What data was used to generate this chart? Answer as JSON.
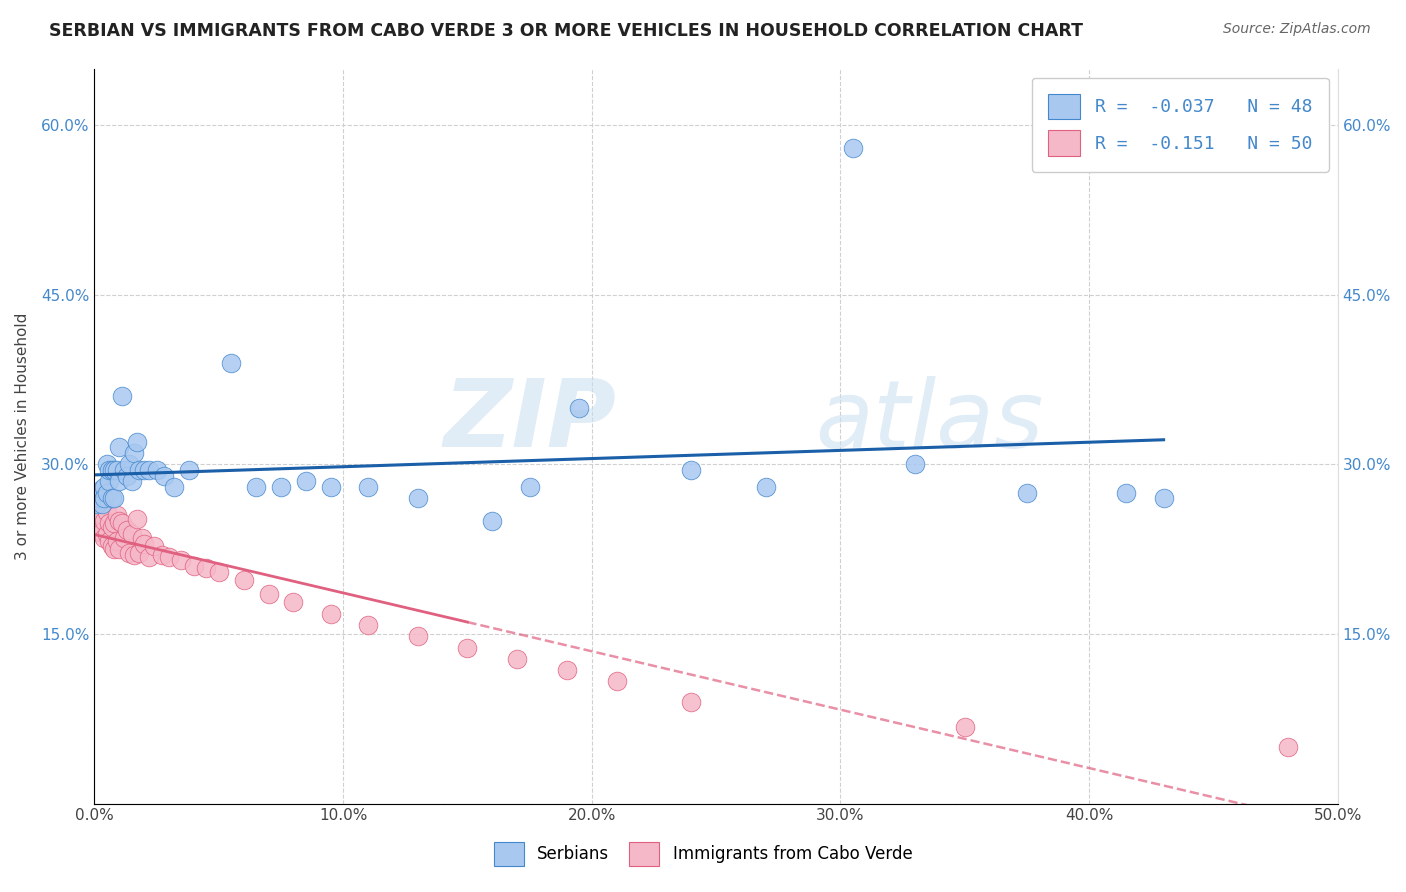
{
  "title": "SERBIAN VS IMMIGRANTS FROM CABO VERDE 3 OR MORE VEHICLES IN HOUSEHOLD CORRELATION CHART",
  "source": "Source: ZipAtlas.com",
  "ylabel": "3 or more Vehicles in Household",
  "xlim": [
    0,
    0.5
  ],
  "ylim": [
    0,
    0.65
  ],
  "xticks": [
    0.0,
    0.1,
    0.2,
    0.3,
    0.4,
    0.5
  ],
  "xtick_labels": [
    "0.0%",
    "10.0%",
    "20.0%",
    "30.0%",
    "40.0%",
    "50.0%"
  ],
  "yticks": [
    0.0,
    0.15,
    0.3,
    0.45,
    0.6
  ],
  "ytick_labels_left": [
    "",
    "15.0%",
    "30.0%",
    "45.0%",
    "60.0%"
  ],
  "ytick_labels_right": [
    "",
    "15.0%",
    "30.0%",
    "45.0%",
    "60.0%"
  ],
  "legend_labels": [
    "Serbians",
    "Immigrants from Cabo Verde"
  ],
  "serbian_R": -0.037,
  "serbian_N": 48,
  "caboverde_R": -0.151,
  "caboverde_N": 50,
  "serbian_color": "#a8c8f0",
  "caboverde_color": "#f5b8c8",
  "serbian_edge_color": "#4488cc",
  "caboverde_edge_color": "#e06080",
  "serbian_line_color": "#1a5fa8",
  "caboverde_line_color": "#e06080",
  "serbian_x": [
    0.001,
    0.002,
    0.003,
    0.003,
    0.004,
    0.004,
    0.005,
    0.005,
    0.006,
    0.006,
    0.007,
    0.007,
    0.008,
    0.008,
    0.009,
    0.01,
    0.01,
    0.011,
    0.012,
    0.013,
    0.014,
    0.015,
    0.016,
    0.017,
    0.018,
    0.02,
    0.022,
    0.025,
    0.028,
    0.032,
    0.038,
    0.055,
    0.065,
    0.075,
    0.085,
    0.095,
    0.11,
    0.13,
    0.16,
    0.175,
    0.195,
    0.24,
    0.27,
    0.305,
    0.33,
    0.375,
    0.415,
    0.43
  ],
  "serbian_y": [
    0.265,
    0.27,
    0.278,
    0.265,
    0.28,
    0.27,
    0.3,
    0.275,
    0.285,
    0.295,
    0.27,
    0.295,
    0.27,
    0.295,
    0.295,
    0.315,
    0.285,
    0.36,
    0.295,
    0.29,
    0.3,
    0.285,
    0.31,
    0.32,
    0.295,
    0.295,
    0.295,
    0.295,
    0.29,
    0.28,
    0.295,
    0.39,
    0.28,
    0.28,
    0.285,
    0.28,
    0.28,
    0.27,
    0.25,
    0.28,
    0.35,
    0.295,
    0.28,
    0.58,
    0.3,
    0.275,
    0.275,
    0.27
  ],
  "caboverde_x": [
    0.001,
    0.002,
    0.002,
    0.003,
    0.003,
    0.004,
    0.004,
    0.005,
    0.005,
    0.006,
    0.006,
    0.007,
    0.007,
    0.008,
    0.008,
    0.009,
    0.009,
    0.01,
    0.01,
    0.011,
    0.012,
    0.013,
    0.014,
    0.015,
    0.016,
    0.017,
    0.018,
    0.019,
    0.02,
    0.022,
    0.024,
    0.027,
    0.03,
    0.035,
    0.04,
    0.045,
    0.05,
    0.06,
    0.07,
    0.08,
    0.095,
    0.11,
    0.13,
    0.15,
    0.17,
    0.19,
    0.21,
    0.24,
    0.35,
    0.48
  ],
  "caboverde_y": [
    0.26,
    0.25,
    0.24,
    0.255,
    0.24,
    0.25,
    0.235,
    0.258,
    0.238,
    0.248,
    0.232,
    0.245,
    0.228,
    0.248,
    0.225,
    0.255,
    0.232,
    0.25,
    0.225,
    0.248,
    0.235,
    0.242,
    0.222,
    0.238,
    0.22,
    0.252,
    0.222,
    0.235,
    0.23,
    0.218,
    0.228,
    0.22,
    0.218,
    0.215,
    0.21,
    0.208,
    0.205,
    0.198,
    0.185,
    0.178,
    0.168,
    0.158,
    0.148,
    0.138,
    0.128,
    0.118,
    0.108,
    0.09,
    0.068,
    0.05
  ],
  "watermark_zip": "ZIP",
  "watermark_atlas": "atlas",
  "background_color": "#ffffff",
  "grid_color": "#d0d0d0"
}
